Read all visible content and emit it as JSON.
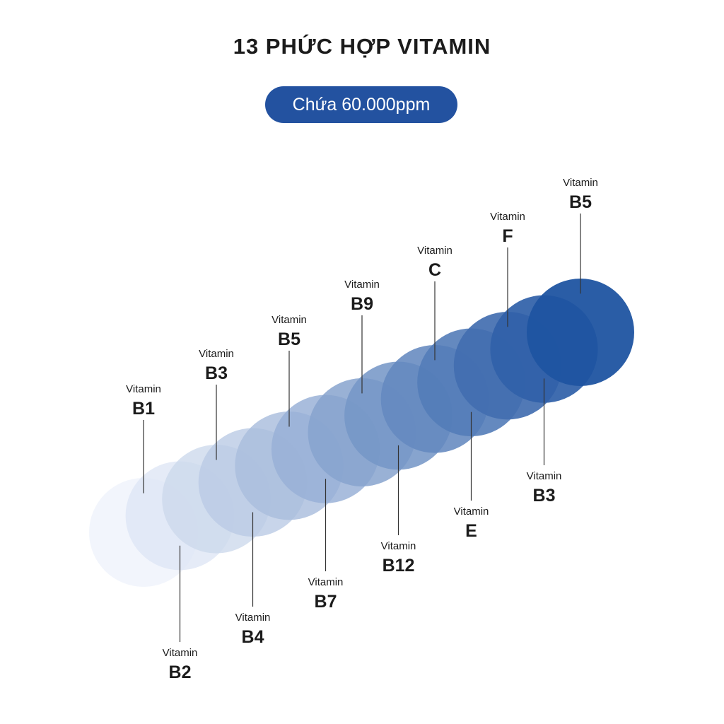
{
  "title": "13 PHỨC HỢP VITAMIN",
  "badge": "Chứa 60.000ppm",
  "colors": {
    "badge": "#2352a0",
    "circle_light": "#eef2fb",
    "circle_dark": "#1f54a1",
    "line": "#333333"
  },
  "vitamins": [
    {
      "prefix": "Vitamin",
      "name": "B1",
      "position": "top"
    },
    {
      "prefix": "Vitamin",
      "name": "B2",
      "position": "bottom"
    },
    {
      "prefix": "Vitamin",
      "name": "B3",
      "position": "top"
    },
    {
      "prefix": "Vitamin",
      "name": "B4",
      "position": "bottom"
    },
    {
      "prefix": "Vitamin",
      "name": "B5",
      "position": "top"
    },
    {
      "prefix": "Vitamin",
      "name": "B7",
      "position": "bottom"
    },
    {
      "prefix": "Vitamin",
      "name": "B9",
      "position": "top"
    },
    {
      "prefix": "Vitamin",
      "name": "B12",
      "position": "bottom"
    },
    {
      "prefix": "Vitamin",
      "name": "C",
      "position": "top"
    },
    {
      "prefix": "Vitamin",
      "name": "E",
      "position": "bottom"
    },
    {
      "prefix": "Vitamin",
      "name": "F",
      "position": "top"
    },
    {
      "prefix": "Vitamin",
      "name": "B3",
      "position": "bottom"
    },
    {
      "prefix": "Vitamin",
      "name": "B5",
      "position": "top"
    }
  ]
}
